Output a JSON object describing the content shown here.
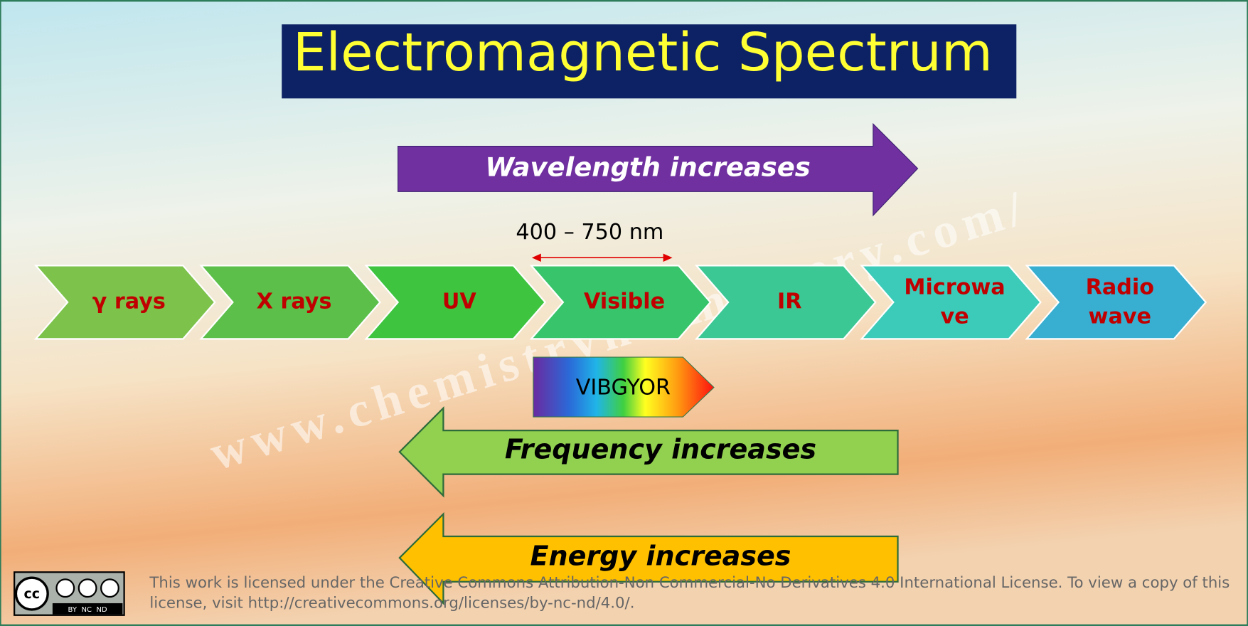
{
  "title": "Electromagnetic Spectrum",
  "wavelength_label": "Wavelength increases",
  "visible_range": "400 – 750 nm",
  "bands": [
    "γ rays",
    "X rays",
    "UV",
    "Visible",
    "IR",
    "Microwa\nve",
    "Radio\nwave"
  ],
  "vibgyor": "VIBGYOR",
  "frequency_label": "Frequency increases",
  "energy_label": "Energy increases",
  "watermark": "www.chemistrynotmystery.com/",
  "license": {
    "badge": "cc",
    "badge_terms": "BY  NC  ND",
    "text": "This work is licensed under the Creative Commons Attribution-Non Commercial-No Derivatives 4.0 International License. To view a copy of this\nlicense, visit http://creativecommons.org/licenses/by-nc-nd/4.0/."
  }
}
